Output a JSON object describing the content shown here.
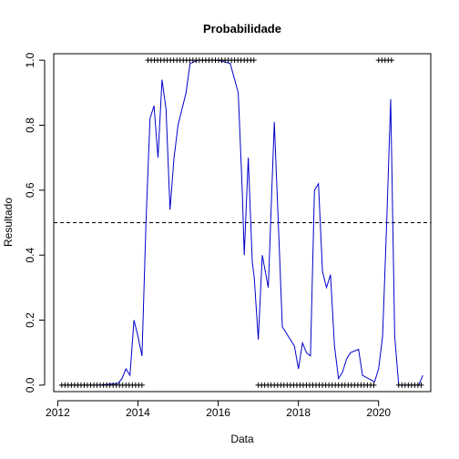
{
  "chart_data": {
    "type": "line",
    "title": "Probabilidade",
    "xlabel": "Data",
    "ylabel": "Resultado",
    "xlim": [
      2011.9,
      2021.3
    ],
    "ylim": [
      -0.02,
      1.02
    ],
    "x_ticks": [
      2012,
      2014,
      2016,
      2018,
      2020
    ],
    "y_ticks": [
      0.0,
      0.2,
      0.4,
      0.6,
      0.8,
      1.0
    ],
    "x_tick_labels": [
      "2012",
      "2014",
      "2016",
      "2018",
      "2020"
    ],
    "y_tick_labels": [
      "0.0",
      "0.2",
      "0.4",
      "0.6",
      "0.8",
      "1.0"
    ],
    "threshold": 0.5,
    "grid": false,
    "series": [
      {
        "name": "Probabilidade",
        "color": "#0000cc",
        "x": [
          2012.08,
          2012.5,
          2013.0,
          2013.5,
          2013.6,
          2013.7,
          2013.8,
          2013.9,
          2014.0,
          2014.1,
          2014.2,
          2014.3,
          2014.4,
          2014.5,
          2014.6,
          2014.7,
          2014.8,
          2014.9,
          2015.0,
          2015.1,
          2015.2,
          2015.3,
          2015.5,
          2016.0,
          2016.3,
          2016.5,
          2016.6,
          2016.65,
          2016.75,
          2016.85,
          2016.9,
          2017.0,
          2017.1,
          2017.25,
          2017.4,
          2017.5,
          2017.6,
          2017.75,
          2017.9,
          2018.0,
          2018.1,
          2018.2,
          2018.3,
          2018.4,
          2018.5,
          2018.6,
          2018.7,
          2018.8,
          2018.9,
          2019.0,
          2019.1,
          2019.2,
          2019.3,
          2019.5,
          2019.6,
          2019.9,
          2020.0,
          2020.1,
          2020.2,
          2020.3,
          2020.4,
          2020.5,
          2020.6,
          2020.8,
          2021.0,
          2021.1
        ],
        "y": [
          0.0,
          0.0,
          0.0,
          0.005,
          0.02,
          0.05,
          0.03,
          0.2,
          0.15,
          0.09,
          0.5,
          0.82,
          0.86,
          0.7,
          0.94,
          0.85,
          0.54,
          0.7,
          0.8,
          0.85,
          0.9,
          0.99,
          1.0,
          1.0,
          0.99,
          0.9,
          0.6,
          0.4,
          0.7,
          0.38,
          0.33,
          0.14,
          0.4,
          0.3,
          0.81,
          0.5,
          0.18,
          0.15,
          0.12,
          0.05,
          0.13,
          0.1,
          0.09,
          0.6,
          0.62,
          0.35,
          0.3,
          0.34,
          0.12,
          0.02,
          0.04,
          0.08,
          0.1,
          0.11,
          0.03,
          0.01,
          0.05,
          0.15,
          0.5,
          0.88,
          0.15,
          0.0,
          0.0,
          0.0,
          0.0,
          0.03
        ]
      }
    ],
    "observations": {
      "marker": "+",
      "groups": [
        {
          "value": 0,
          "from": 2012.1,
          "to": 2014.15,
          "step": 0.08
        },
        {
          "value": 1,
          "from": 2014.25,
          "to": 2016.95,
          "step": 0.08
        },
        {
          "value": 0,
          "from": 2017.0,
          "to": 2019.95,
          "step": 0.08
        },
        {
          "value": 1,
          "from": 2020.0,
          "to": 2020.35,
          "step": 0.08
        },
        {
          "value": 0,
          "from": 2020.5,
          "to": 2021.1,
          "step": 0.08
        }
      ]
    }
  }
}
